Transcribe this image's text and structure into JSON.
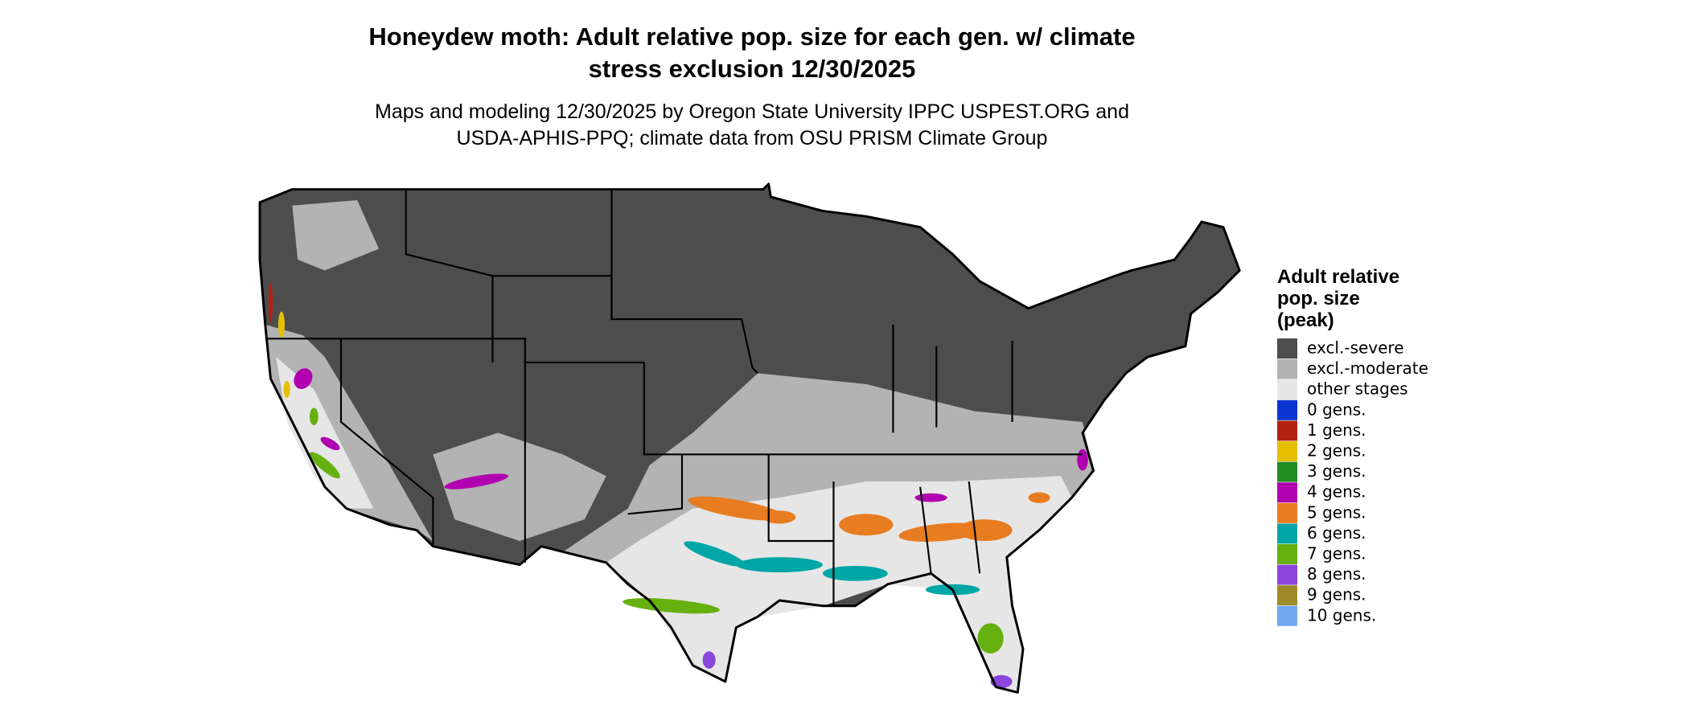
{
  "header": {
    "title_lines": [
      "Honeydew moth: Adult relative pop. size for each gen. w/ climate",
      "stress exclusion 12/30/2025"
    ],
    "subtitle_lines": [
      "Maps and modeling 12/30/2025 by Oregon State University IPPC USPEST.ORG and",
      "USDA-APHIS-PPQ; climate data from OSU PRISM Climate Group"
    ]
  },
  "legend": {
    "title_lines": [
      "Adult relative",
      "pop. size",
      "(peak)"
    ],
    "items": [
      {
        "label": "excl.-severe",
        "color": "#4d4d4d"
      },
      {
        "label": "excl.-moderate",
        "color": "#b3b3b3"
      },
      {
        "label": "other stages",
        "color": "#e6e6e6"
      },
      {
        "label": "0 gens.",
        "color": "#0b35d0"
      },
      {
        "label": "1 gens.",
        "color": "#b32210"
      },
      {
        "label": "2 gens.",
        "color": "#e6c000"
      },
      {
        "label": "3 gens.",
        "color": "#228b22"
      },
      {
        "label": "4 gens.",
        "color": "#b000b0"
      },
      {
        "label": "5 gens.",
        "color": "#e87c20"
      },
      {
        "label": "6 gens.",
        "color": "#00a6a6"
      },
      {
        "label": "7 gens.",
        "color": "#66b010"
      },
      {
        "label": "8 gens.",
        "color": "#8a45dd"
      },
      {
        "label": "9 gens.",
        "color": "#a08a28"
      },
      {
        "label": "10 gens.",
        "color": "#70a8f0"
      }
    ]
  }
}
